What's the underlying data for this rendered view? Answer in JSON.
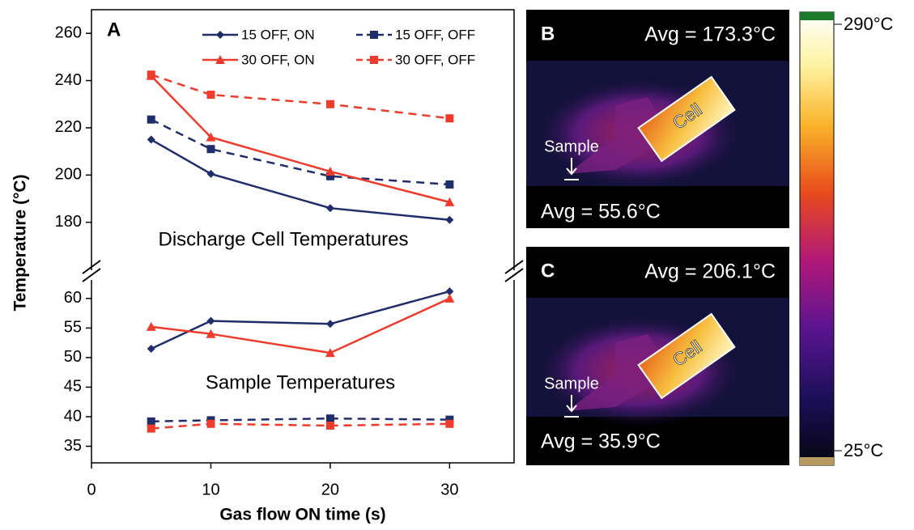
{
  "chart_data": [
    {
      "type": "line",
      "panel_label": "A",
      "annotation": "Discharge Cell Temperatures",
      "xlim": [
        0,
        35.4
      ],
      "ylim": [
        159,
        270
      ],
      "yticks": [
        180,
        200,
        220,
        240,
        260
      ],
      "series": [
        {
          "name": "15 OFF, ON",
          "color": "#1f2d6b",
          "dash": false,
          "marker": "diamond",
          "x": [
            5,
            10,
            20,
            30
          ],
          "values": [
            215,
            200.5,
            186,
            181
          ]
        },
        {
          "name": "15 OFF, OFF",
          "color": "#1f2d6b",
          "dash": true,
          "marker": "square",
          "x": [
            5,
            10,
            20,
            30
          ],
          "values": [
            223.5,
            211,
            199.5,
            196
          ]
        },
        {
          "name": "30 OFF, ON",
          "color": "#ee3b2b",
          "dash": false,
          "marker": "triangle",
          "x": [
            5,
            10,
            20,
            30
          ],
          "values": [
            242,
            216,
            201.5,
            188.5
          ]
        },
        {
          "name": "30 OFF, OFF",
          "color": "#ee3b2b",
          "dash": true,
          "marker": "square",
          "x": [
            5,
            10,
            20,
            30
          ],
          "values": [
            242.5,
            234,
            230,
            224
          ]
        }
      ]
    },
    {
      "type": "line",
      "annotation": "Sample Temperatures",
      "xlabel": "Gas flow ON time (s)",
      "ylabel": "Temperature (°C)",
      "xlim": [
        0,
        35.4
      ],
      "xticks": [
        0,
        10,
        20,
        30
      ],
      "ylim": [
        32.2,
        63.4
      ],
      "yticks": [
        35,
        40,
        45,
        50,
        55,
        60
      ],
      "series": [
        {
          "color": "#1f2d6b",
          "dash": false,
          "marker": "diamond",
          "x": [
            5,
            10,
            20,
            30
          ],
          "values": [
            51.5,
            56.2,
            55.7,
            61.2
          ]
        },
        {
          "color": "#1f2d6b",
          "dash": true,
          "marker": "square",
          "x": [
            5,
            10,
            20,
            30
          ],
          "values": [
            39.2,
            39.4,
            39.7,
            39.5
          ]
        },
        {
          "color": "#ee3b2b",
          "dash": false,
          "marker": "triangle",
          "x": [
            5,
            10,
            20,
            30
          ],
          "values": [
            55.2,
            54,
            50.8,
            60
          ]
        },
        {
          "color": "#ee3b2b",
          "dash": true,
          "marker": "square",
          "x": [
            5,
            10,
            20,
            30
          ],
          "values": [
            38,
            38.8,
            38.5,
            38.8
          ]
        }
      ]
    }
  ],
  "thermal_images": [
    {
      "label": "B",
      "cell_avg": "Avg = 173.3°C",
      "sample_avg": "Avg = 55.6°C",
      "sample": "Sample",
      "cell": "Cell"
    },
    {
      "label": "C",
      "cell_avg": "Avg = 206.1°C",
      "sample_avg": "Avg = 35.9°C",
      "sample": "Sample",
      "cell": "Cell"
    }
  ],
  "colorbar": {
    "max_label": "290°C",
    "min_label": "25°C"
  }
}
